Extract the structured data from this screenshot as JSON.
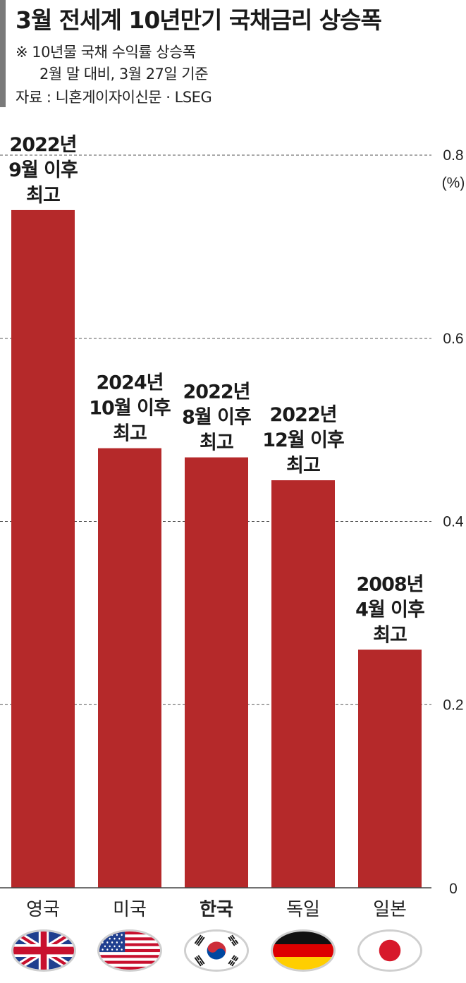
{
  "header": {
    "title": "3월 전세계 10년만기 국채금리 상승폭",
    "note_line1": "※ 10년물 국채 수익률 상승폭",
    "note_line2": "2월 말 대비, 3월 27일 기준",
    "source": "자료 : 니혼게이자이신문 · LSEG"
  },
  "chart_data": {
    "type": "bar",
    "title": "3월 전세계 10년만기 국채금리 상승폭",
    "unit": "(%)",
    "categories": [
      "영국",
      "미국",
      "한국",
      "독일",
      "일본"
    ],
    "values": [
      0.74,
      0.48,
      0.47,
      0.445,
      0.26
    ],
    "bar_labels": [
      [
        "2022년",
        "9월 이후",
        "최고"
      ],
      [
        "2024년",
        "10월 이후",
        "최고"
      ],
      [
        "2022년",
        "8월 이후",
        "최고"
      ],
      [
        "2022년",
        "12월 이후",
        "최고"
      ],
      [
        "2008년",
        "4월 이후",
        "최고"
      ]
    ],
    "ylim": [
      0,
      0.8
    ],
    "yticks": [
      "0",
      "0.2",
      "0.4",
      "0.6",
      "0.8"
    ],
    "grid": true,
    "bar_color": "#b5292a",
    "highlight_category": "한국"
  },
  "flags": [
    "uk-flag-icon",
    "us-flag-icon",
    "korea-flag-icon",
    "germany-flag-icon",
    "japan-flag-icon"
  ]
}
